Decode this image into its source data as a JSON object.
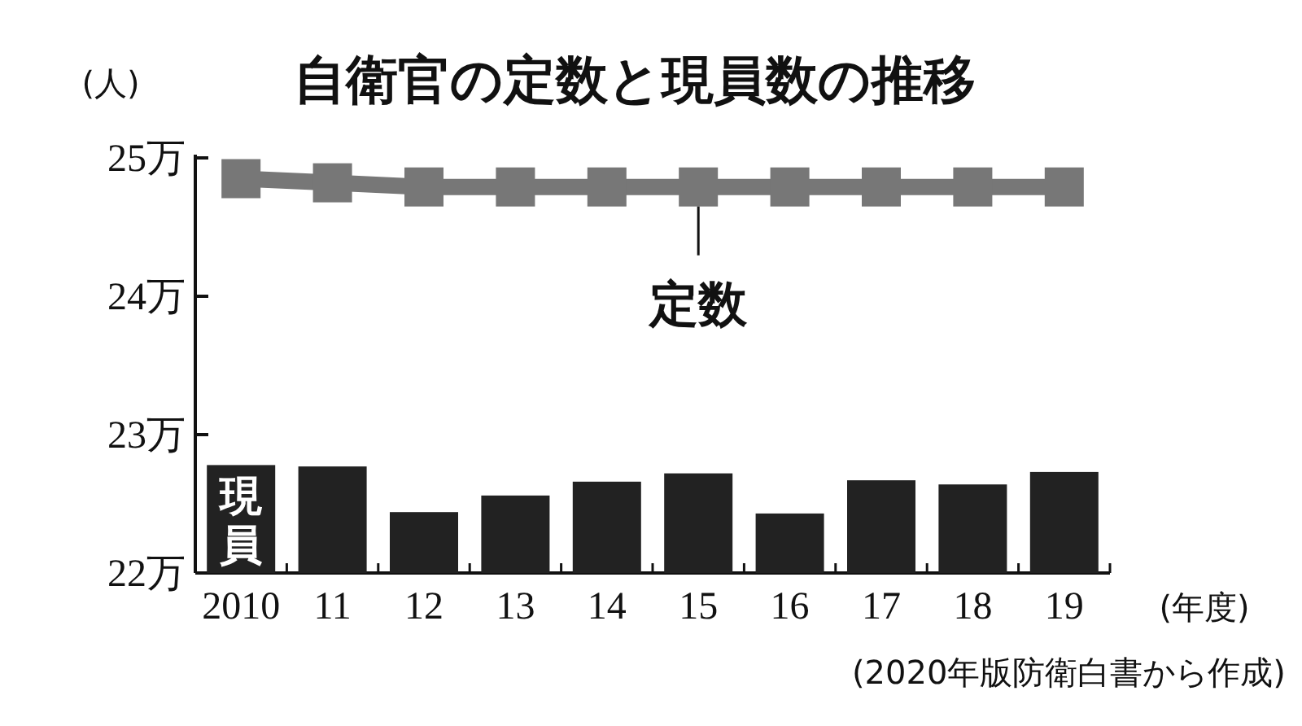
{
  "chart_data": {
    "type": "bar",
    "title": "自衛官の定数と現員数の推移",
    "ylabel": "(人)",
    "xlabel": "(年度)",
    "annotations": [
      "(2020年版防衛白書から作成)"
    ],
    "categories": [
      "2010",
      "11",
      "12",
      "13",
      "14",
      "15",
      "16",
      "17",
      "18",
      "19"
    ],
    "series": [
      {
        "name": "定数",
        "type": "line",
        "color": "#777777",
        "marker": "square",
        "values": [
          24.85,
          24.82,
          24.79,
          24.79,
          24.79,
          24.79,
          24.79,
          24.79,
          24.79,
          24.79
        ]
      },
      {
        "name": "現員",
        "color": "#222222",
        "values": [
          22.78,
          22.77,
          22.44,
          22.56,
          22.66,
          22.72,
          22.43,
          22.67,
          22.64,
          22.73
        ]
      }
    ],
    "ylim": [
      22,
      25
    ],
    "yticks": [
      {
        "value": 22,
        "label": "22万"
      },
      {
        "value": 23,
        "label": "23万"
      },
      {
        "value": 24,
        "label": "24万"
      },
      {
        "value": 25,
        "label": "25万"
      }
    ],
    "grid": false
  }
}
